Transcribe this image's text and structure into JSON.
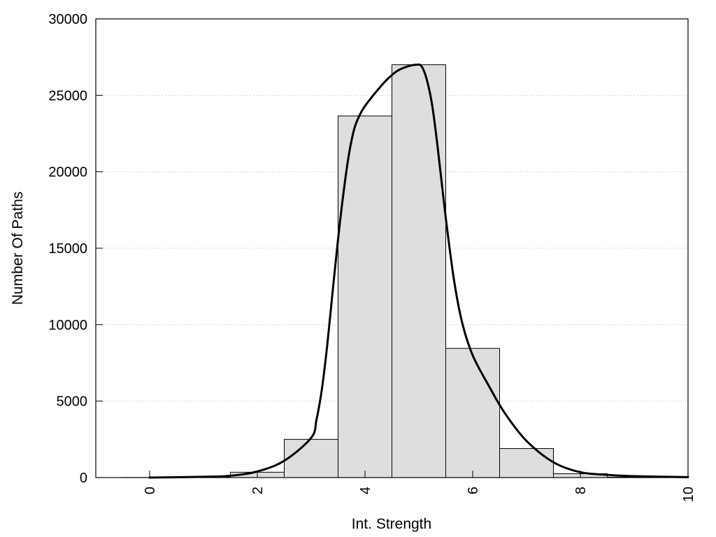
{
  "chart_data": {
    "type": "bar",
    "title": "",
    "xlabel": "Int. Strength",
    "ylabel": "Number Of Paths",
    "xlim": [
      -1,
      10
    ],
    "ylim": [
      0,
      30000
    ],
    "x_ticks": [
      0,
      2,
      4,
      6,
      8,
      10
    ],
    "y_ticks": [
      0,
      5000,
      10000,
      15000,
      20000,
      25000,
      30000
    ],
    "grid": "horizontal dotted",
    "bar_width": 1,
    "bars": [
      {
        "x": 0,
        "value": 5
      },
      {
        "x": 1,
        "value": 20
      },
      {
        "x": 2,
        "value": 350
      },
      {
        "x": 3,
        "value": 2500
      },
      {
        "x": 4,
        "value": 23650
      },
      {
        "x": 5,
        "value": 27000
      },
      {
        "x": 6,
        "value": 8450
      },
      {
        "x": 7,
        "value": 1900
      },
      {
        "x": 8,
        "value": 250
      },
      {
        "x": 9,
        "value": 30
      }
    ],
    "curve": {
      "x": [
        0,
        1,
        1.5,
        2,
        2.5,
        3,
        3.1,
        3.2,
        3.3,
        3.4,
        3.5,
        3.6,
        3.7,
        3.8,
        3.9,
        4,
        4.2,
        4.4,
        4.6,
        4.8,
        4.95,
        5.05,
        5.15,
        5.25,
        5.35,
        5.5,
        5.65,
        5.8,
        6,
        6.3,
        6.6,
        7,
        7.5,
        8,
        8.5,
        9,
        10
      ],
      "y": [
        0,
        50,
        120,
        400,
        1100,
        2600,
        3800,
        5800,
        8700,
        12200,
        15600,
        18600,
        21100,
        22800,
        23700,
        24300,
        25200,
        26000,
        26600,
        26900,
        27000,
        26900,
        26000,
        24300,
        21600,
        17000,
        13000,
        10200,
        8000,
        6000,
        4200,
        2400,
        1000,
        350,
        180,
        90,
        30
      ]
    },
    "colors": {
      "bar_fill": "#dedede",
      "bar_stroke": "#000000",
      "curve": "#000000",
      "grid": "#c8c8c8"
    }
  }
}
